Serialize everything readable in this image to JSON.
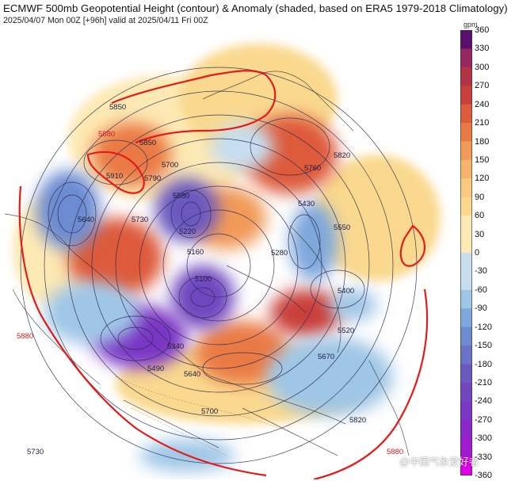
{
  "header": {
    "title": "ECMWF 500mb Geopotential Height (contour) & Anomaly (shaded, based on ERA5 1979-2018 Climatology)",
    "subtitle": "2025/04/07 Mon 00Z [+96h] valid at 2025/04/11 Fri 00Z"
  },
  "colorbar": {
    "unit": "gpm",
    "ticks": [
      {
        "label": "360",
        "value": 360
      },
      {
        "label": "330",
        "value": 330
      },
      {
        "label": "300",
        "value": 300
      },
      {
        "label": "270",
        "value": 270
      },
      {
        "label": "240",
        "value": 240
      },
      {
        "label": "210",
        "value": 210
      },
      {
        "label": "180",
        "value": 180
      },
      {
        "label": "150",
        "value": 150
      },
      {
        "label": "120",
        "value": 120
      },
      {
        "label": "90",
        "value": 90
      },
      {
        "label": "60",
        "value": 60
      },
      {
        "label": "30",
        "value": 30
      },
      {
        "label": "0",
        "value": 0
      },
      {
        "label": "-30",
        "value": -30
      },
      {
        "label": "-60",
        "value": -60
      },
      {
        "label": "-90",
        "value": -90
      },
      {
        "label": "-120",
        "value": -120
      },
      {
        "label": "-150",
        "value": -150
      },
      {
        "label": "-180",
        "value": -180
      },
      {
        "label": "-210",
        "value": -210
      },
      {
        "label": "-240",
        "value": -240
      },
      {
        "label": "-270",
        "value": -270
      },
      {
        "label": "-300",
        "value": -300
      },
      {
        "label": "-330",
        "value": -330
      },
      {
        "label": "-360",
        "value": -360
      }
    ],
    "colors": {
      "max": "#5a0f6e",
      "330": "#7a1f72",
      "300": "#97275e",
      "270": "#b23344",
      "240": "#c9403a",
      "210": "#dd5a3a",
      "180": "#ea7a44",
      "150": "#f29a58",
      "120": "#f6b46a",
      "90": "#f8c97e",
      "60": "#fad98f",
      "30": "#fde9b4",
      "0": "#ffffff",
      "-30": "#c6deef",
      "-60": "#9fc6e6",
      "-90": "#7ea7dc",
      "-120": "#6c8bd1",
      "-150": "#6a73c8",
      "-180": "#6b59c0",
      "-210": "#7047bf",
      "-240": "#7a36c4",
      "-270": "#8b27cb",
      "-300": "#a11ad2",
      "-330": "#bd0fdb",
      "min": "#e000e6"
    }
  },
  "map": {
    "contour_labels": [
      "5850",
      "5880",
      "5910",
      "5850",
      "5790",
      "5700",
      "5640",
      "5730",
      "5580",
      "5430",
      "5280",
      "5220",
      "5160",
      "5100",
      "5760",
      "5820",
      "5550",
      "5400",
      "5520",
      "5670",
      "5640",
      "5340",
      "5490",
      "5700",
      "5820",
      "5880",
      "5880",
      "5730"
    ],
    "highlight_contour": "5880"
  },
  "watermark": "@中国气象爱好者"
}
